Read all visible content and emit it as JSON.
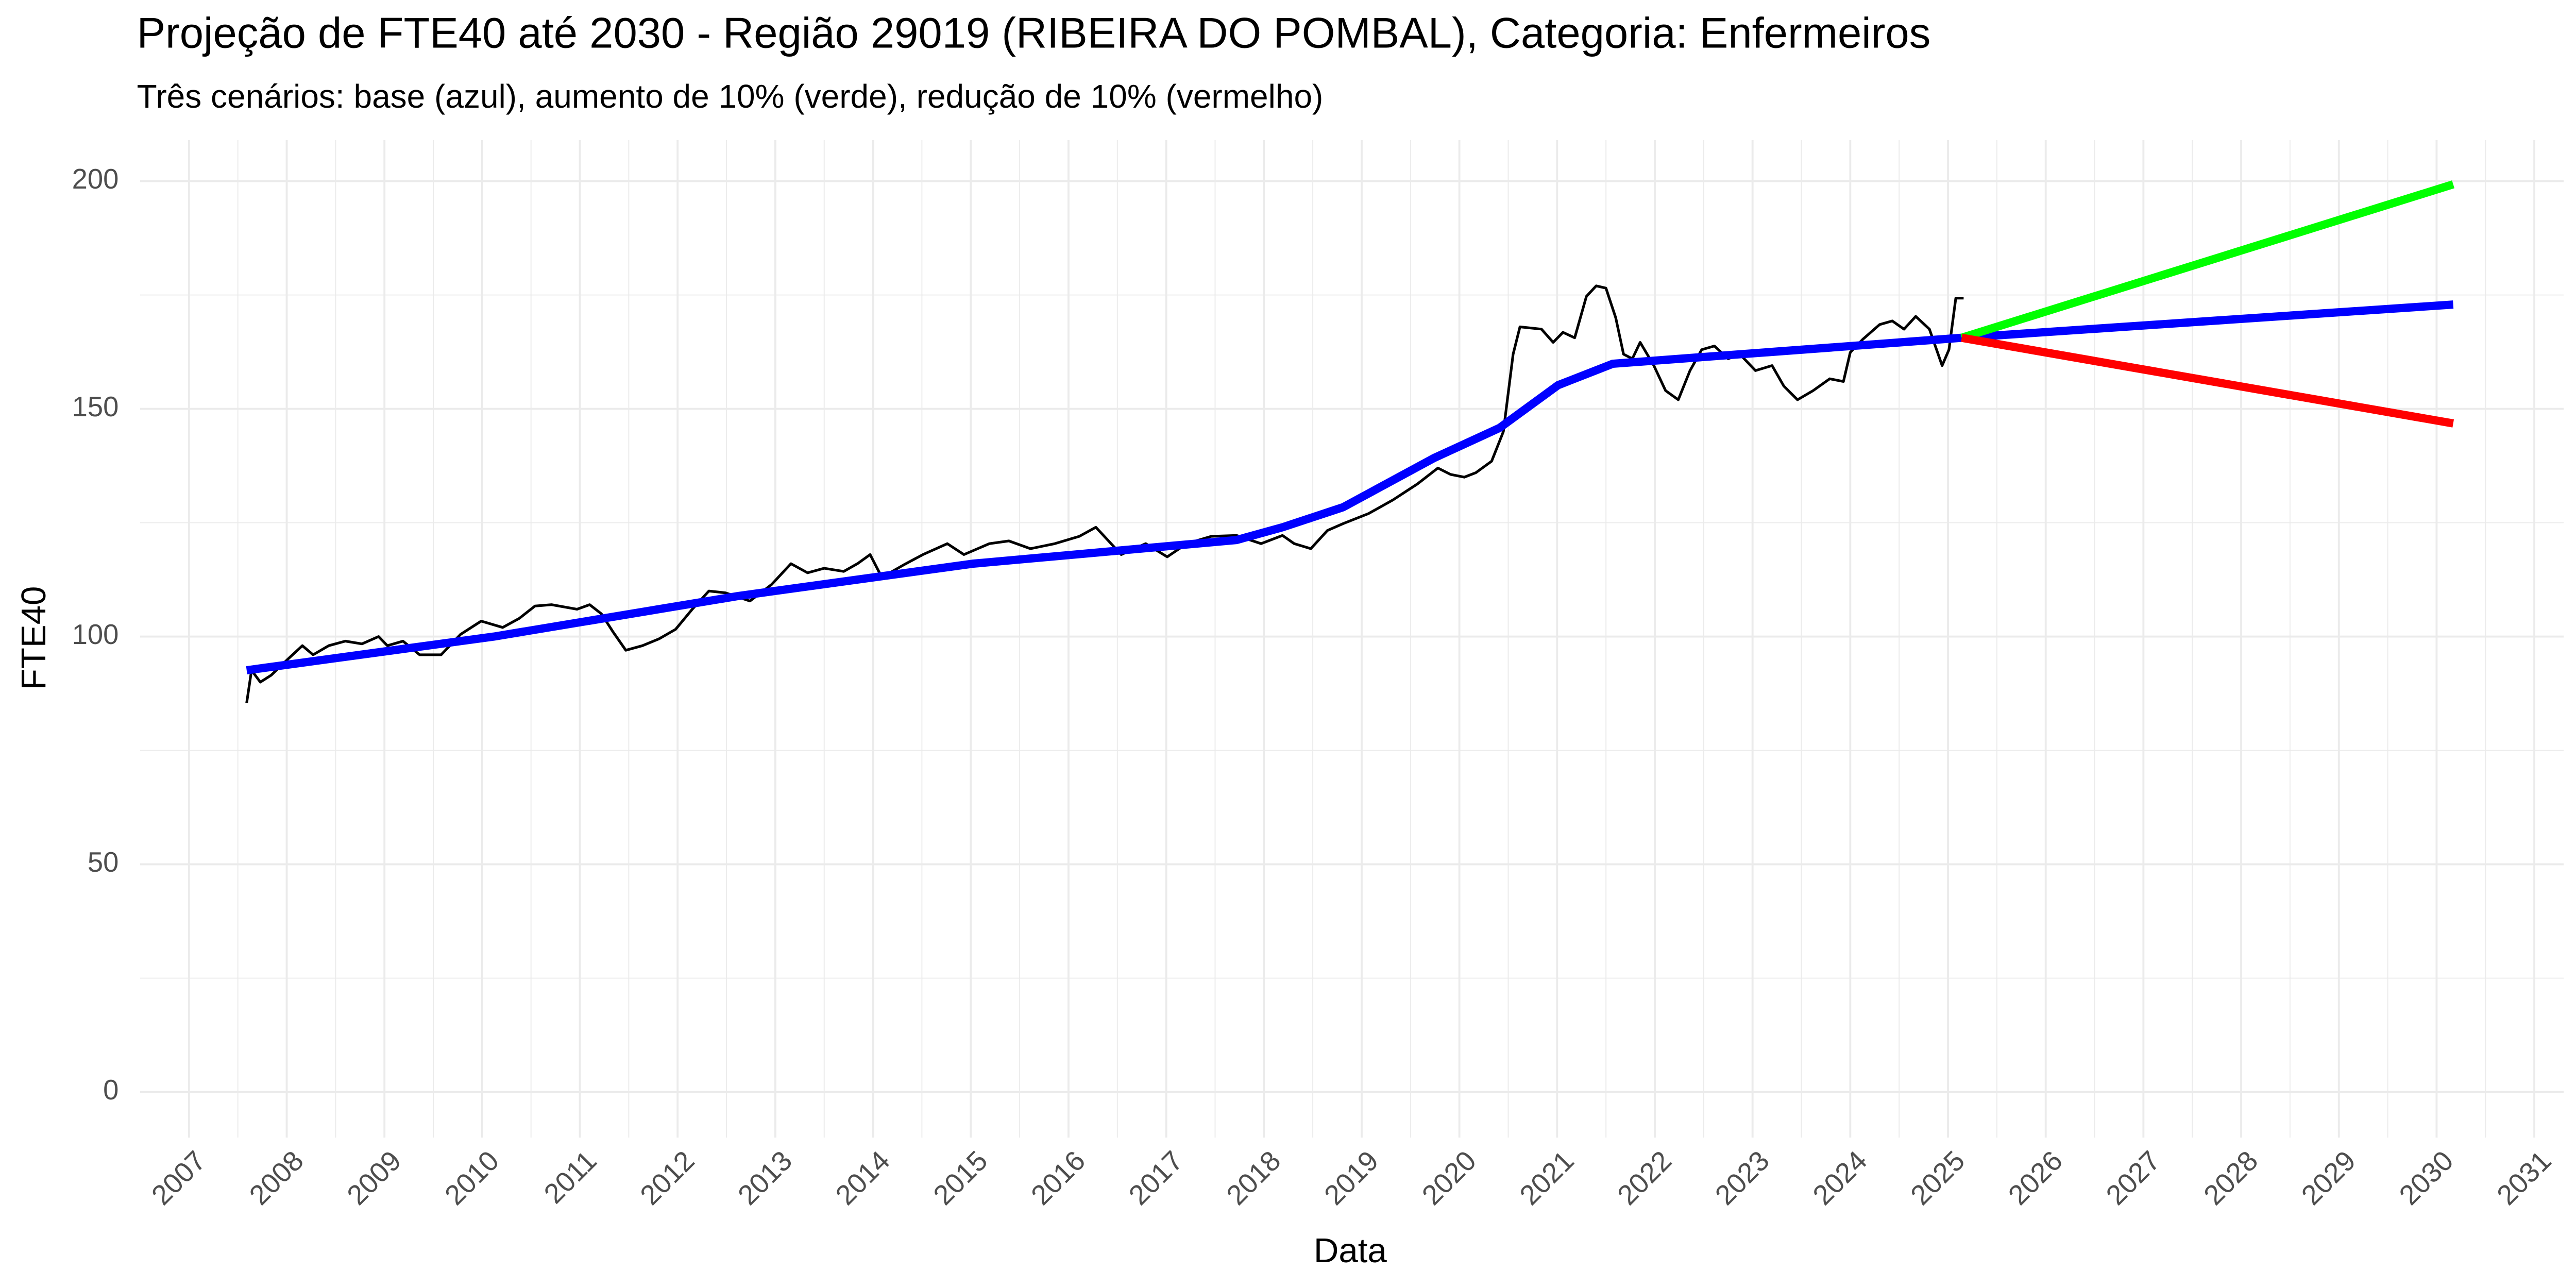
{
  "chart_data": {
    "type": "line",
    "title": "Projeção de FTE40 até 2030 - Região 29019 (RIBEIRA DO POMBAL), Categoria: Enfermeiros",
    "subtitle": "Três cenários: base (azul), aumento de 10% (verde), redução de 10% (vermelho)",
    "x_label": "Data",
    "y_label": "FTE40",
    "xlim": [
      2006.5,
      2031.3
    ],
    "ylim": [
      -10,
      209
    ],
    "xticks": [
      2007,
      2008,
      2009,
      2010,
      2011,
      2012,
      2013,
      2014,
      2015,
      2016,
      2017,
      2018,
      2019,
      2020,
      2021,
      2022,
      2023,
      2024,
      2025,
      2026,
      2027,
      2028,
      2029,
      2030,
      2031
    ],
    "yticks": [
      0,
      50,
      100,
      150,
      200
    ],
    "x_minor_ticks": [
      2007.5,
      2008.5,
      2009.5,
      2010.5,
      2011.5,
      2012.5,
      2013.5,
      2014.5,
      2015.5,
      2016.5,
      2017.5,
      2018.5,
      2019.5,
      2020.5,
      2021.5,
      2022.5,
      2023.5,
      2024.5,
      2025.5,
      2026.5,
      2027.5,
      2028.5,
      2029.5,
      2030.5
    ],
    "y_minor_ticks": [
      25,
      75,
      125,
      175
    ],
    "grid": true,
    "series": [
      {
        "color": "#000000",
        "linewidth": 1.6,
        "x": [
          2007.59,
          2007.64,
          2007.73,
          2007.84,
          2008.01,
          2008.16,
          2008.27,
          2008.43,
          2008.6,
          2008.77,
          2008.94,
          2009.03,
          2009.19,
          2009.36,
          2009.58,
          2009.78,
          2009.99,
          2010.21,
          2010.38,
          2010.54,
          2010.71,
          2010.97,
          2011.1,
          2011.22,
          2011.34,
          2011.47,
          2011.64,
          2011.81,
          2011.98,
          2012.15,
          2012.32,
          2012.49,
          2012.74,
          2012.96,
          2013.16,
          2013.33,
          2013.5,
          2013.7,
          2013.84,
          2013.97,
          2014.09,
          2014.31,
          2014.51,
          2014.76,
          2014.93,
          2015.19,
          2015.39,
          2015.61,
          2015.86,
          2016.11,
          2016.28,
          2016.54,
          2016.79,
          2017.01,
          2017.21,
          2017.46,
          2017.72,
          2017.97,
          2018.19,
          2018.31,
          2018.48,
          2018.65,
          2018.81,
          2019.07,
          2019.32,
          2019.57,
          2019.78,
          2019.91,
          2020.05,
          2020.17,
          2020.33,
          2020.45,
          2020.55,
          2020.62,
          2020.84,
          2020.96,
          2021.06,
          2021.18,
          2021.3,
          2021.4,
          2021.5,
          2021.6,
          2021.68,
          2021.77,
          2021.85,
          2021.99,
          2022.11,
          2022.24,
          2022.36,
          2022.48,
          2022.61,
          2022.75,
          2022.87,
          2023.03,
          2023.2,
          2023.32,
          2023.46,
          2023.62,
          2023.79,
          2023.93,
          2024.0,
          2024.13,
          2024.3,
          2024.43,
          2024.55,
          2024.67,
          2024.81,
          2024.87,
          2024.94,
          2025.01,
          2025.08,
          2025.16
        ],
        "values": [
          85.4,
          92.6,
          90,
          91.5,
          95,
          98,
          96,
          98,
          99,
          98.4,
          100,
          98,
          99,
          96,
          96,
          100.5,
          103.4,
          102,
          104,
          106.7,
          107,
          106,
          107,
          105,
          101,
          97,
          98,
          99.5,
          101.6,
          106,
          110,
          109.6,
          107.8,
          111.4,
          116,
          114,
          115,
          114.3,
          116,
          118,
          113,
          115.7,
          118,
          120.4,
          118,
          120.4,
          121,
          119.3,
          120.4,
          122,
          124,
          118,
          120.4,
          117.5,
          120.4,
          122,
          122.2,
          120.4,
          122.2,
          120.4,
          119.3,
          123.3,
          124.8,
          127,
          130,
          133.5,
          137,
          135.6,
          135,
          136,
          138.5,
          145,
          162,
          168,
          167.5,
          164.6,
          166.8,
          165.6,
          174.7,
          177,
          176.5,
          170,
          162,
          161,
          164.6,
          159.5,
          154,
          152,
          158.4,
          163,
          163.8,
          161,
          162,
          158.4,
          159.5,
          155,
          152,
          154,
          156.6,
          156,
          162.4,
          165.3,
          168.5,
          169.3,
          167.5,
          170.3,
          167.5,
          163.8,
          159.5,
          163,
          174.3,
          174.3
        ]
      },
      {
        "color": "#0000ff",
        "linewidth": 5,
        "x": [
          2007.59,
          2010.12,
          2012.62,
          2015.02,
          2017.72,
          2018.19,
          2018.81,
          2019.74,
          2020.41,
          2021.01,
          2021.57,
          2025.14
        ],
        "values": [
          92.6,
          100,
          108.9,
          116,
          121.2,
          124,
          128.4,
          139.2,
          145.8,
          155.2,
          159.9,
          165.6
        ]
      },
      {
        "color": "#0000ff",
        "linewidth": 5,
        "x": [
          2025.14,
          2030.17
        ],
        "values": [
          165.6,
          172.9
        ]
      },
      {
        "color": "#00ff00",
        "linewidth": 5,
        "x": [
          2025.14,
          2030.17
        ],
        "values": [
          165.6,
          199.3
        ]
      },
      {
        "color": "#ff0000",
        "linewidth": 5,
        "x": [
          2025.14,
          2030.17
        ],
        "values": [
          165.6,
          146.8
        ]
      }
    ]
  }
}
